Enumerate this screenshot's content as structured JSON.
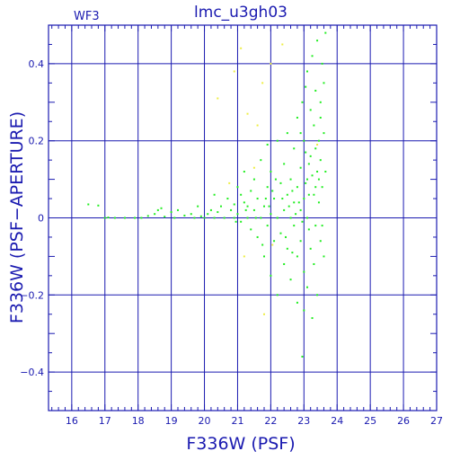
{
  "chart_data": {
    "type": "scatter",
    "title": "lmc_u3gh03",
    "corner_label": "WF3",
    "xlabel": "F336W (PSF)",
    "ylabel": "F336W (PSF−APERTURE)",
    "xlim": [
      15.3,
      27
    ],
    "ylim": [
      -0.5,
      0.5
    ],
    "xticks": [
      16,
      17,
      18,
      19,
      20,
      21,
      22,
      23,
      24,
      25,
      26,
      27
    ],
    "yticks": [
      -0.4,
      -0.2,
      0,
      0.2,
      0.4
    ],
    "ytick_labels": [
      "−0.4",
      "−0.2",
      "0",
      "0.2",
      "0.4"
    ],
    "grid": true,
    "colors": {
      "axis": "#1a1ab0",
      "grid": "#1a1ab0",
      "points_main": "#22ee22",
      "points_alt": "#eeee44"
    },
    "series": [
      {
        "color": "#22ee22",
        "points": [
          [
            16.5,
            0.035
          ],
          [
            16.8,
            0.032
          ],
          [
            17.0,
            0.0
          ],
          [
            17.1,
            0.001
          ],
          [
            17.3,
            0.0
          ],
          [
            17.6,
            0.0
          ],
          [
            17.9,
            0.0
          ],
          [
            18.1,
            0.0
          ],
          [
            18.3,
            0.005
          ],
          [
            18.5,
            0.01
          ],
          [
            18.6,
            0.02
          ],
          [
            18.7,
            0.025
          ],
          [
            18.8,
            0.003
          ],
          [
            19.0,
            0.015
          ],
          [
            19.1,
            0.0
          ],
          [
            19.2,
            0.02
          ],
          [
            19.4,
            0.006
          ],
          [
            19.6,
            0.01
          ],
          [
            19.7,
            0.0
          ],
          [
            19.8,
            0.03
          ],
          [
            19.9,
            0.004
          ],
          [
            20.0,
            0.0
          ],
          [
            20.1,
            0.01
          ],
          [
            20.2,
            0.02
          ],
          [
            20.3,
            0.06
          ],
          [
            20.3,
            0.0
          ],
          [
            20.4,
            0.015
          ],
          [
            20.5,
            0.03
          ],
          [
            20.6,
            0.0
          ],
          [
            20.7,
            0.05
          ],
          [
            20.8,
            0.02
          ],
          [
            20.9,
            0.0
          ],
          [
            20.9,
            0.035
          ],
          [
            21.0,
            0.01
          ],
          [
            21.0,
            0.08
          ],
          [
            21.1,
            0.06
          ],
          [
            21.1,
            -0.01
          ],
          [
            21.2,
            0.12
          ],
          [
            21.2,
            0.04
          ],
          [
            21.3,
            0.0
          ],
          [
            21.3,
            0.03
          ],
          [
            21.4,
            0.07
          ],
          [
            21.4,
            -0.03
          ],
          [
            21.5,
            0.02
          ],
          [
            21.5,
            0.1
          ],
          [
            21.6,
            -0.05
          ],
          [
            21.6,
            0.05
          ],
          [
            21.7,
            0.0
          ],
          [
            21.7,
            0.15
          ],
          [
            21.8,
            0.03
          ],
          [
            21.8,
            -0.1
          ],
          [
            21.9,
            0.08
          ],
          [
            21.9,
            -0.02
          ],
          [
            21.9,
            0.19
          ],
          [
            22.0,
            0.01
          ],
          [
            22.0,
            -0.15
          ],
          [
            22.0,
            0.12
          ],
          [
            22.1,
            0.05
          ],
          [
            22.1,
            -0.06
          ],
          [
            22.2,
            0.0
          ],
          [
            22.2,
            0.2
          ],
          [
            22.2,
            -0.2
          ],
          [
            22.3,
            0.09
          ],
          [
            22.3,
            -0.04
          ],
          [
            22.4,
            0.14
          ],
          [
            22.4,
            0.02
          ],
          [
            22.4,
            -0.12
          ],
          [
            22.5,
            0.06
          ],
          [
            22.5,
            -0.08
          ],
          [
            22.5,
            0.22
          ],
          [
            22.6,
            0.0
          ],
          [
            22.6,
            0.1
          ],
          [
            22.6,
            -0.16
          ],
          [
            22.7,
            0.04
          ],
          [
            22.7,
            -0.02
          ],
          [
            22.7,
            0.18
          ],
          [
            22.8,
            0.08
          ],
          [
            22.8,
            -0.1
          ],
          [
            22.8,
            -0.22
          ],
          [
            22.8,
            0.26
          ],
          [
            22.9,
            0.02
          ],
          [
            22.9,
            0.13
          ],
          [
            22.9,
            -0.06
          ],
          [
            22.95,
            0.3
          ],
          [
            22.95,
            -0.36
          ],
          [
            23.0,
            0.05
          ],
          [
            23.0,
            -0.14
          ],
          [
            23.0,
            0.2
          ],
          [
            23.0,
            -0.24
          ],
          [
            23.05,
            0.34
          ],
          [
            23.1,
            0.0
          ],
          [
            23.1,
            0.1
          ],
          [
            23.1,
            -0.18
          ],
          [
            23.1,
            0.38
          ],
          [
            23.15,
            -0.03
          ],
          [
            23.2,
            0.16
          ],
          [
            23.2,
            -0.08
          ],
          [
            23.2,
            0.28
          ],
          [
            23.25,
            0.42
          ],
          [
            23.25,
            -0.26
          ],
          [
            23.3,
            0.06
          ],
          [
            23.3,
            -0.12
          ],
          [
            23.3,
            0.24
          ],
          [
            23.35,
            0.33
          ],
          [
            23.35,
            -0.02
          ],
          [
            23.4,
            0.12
          ],
          [
            23.4,
            -0.2
          ],
          [
            23.4,
            0.46
          ],
          [
            23.45,
            0.2
          ],
          [
            23.45,
            0.04
          ],
          [
            23.5,
            0.3
          ],
          [
            23.5,
            -0.06
          ],
          [
            23.5,
            0.15
          ],
          [
            23.55,
            0.4
          ],
          [
            23.55,
            0.08
          ],
          [
            23.6,
            0.22
          ],
          [
            23.6,
            -0.1
          ],
          [
            23.65,
            0.48
          ],
          [
            23.65,
            0.12
          ],
          [
            22.2,
            0.0
          ],
          [
            22.35,
            0.05
          ],
          [
            22.55,
            0.03
          ],
          [
            22.65,
            0.07
          ],
          [
            22.75,
            0.01
          ],
          [
            22.85,
            0.04
          ],
          [
            23.05,
            0.09
          ],
          [
            23.15,
            0.06
          ],
          [
            23.25,
            0.11
          ],
          [
            23.35,
            0.08
          ],
          [
            23.45,
            0.1
          ],
          [
            23.15,
            0.14
          ],
          [
            22.05,
            0.07
          ],
          [
            21.85,
            0.05
          ],
          [
            21.75,
            -0.07
          ],
          [
            22.45,
            -0.05
          ],
          [
            22.95,
            -0.01
          ],
          [
            23.05,
            0.17
          ],
          [
            23.55,
            -0.02
          ],
          [
            20.95,
            -0.01
          ],
          [
            21.25,
            0.02
          ],
          [
            21.55,
            0.0
          ],
          [
            21.95,
            0.03
          ],
          [
            22.15,
            0.1
          ],
          [
            22.65,
            -0.09
          ],
          [
            22.9,
            0.22
          ],
          [
            23.35,
            0.18
          ],
          [
            23.5,
            0.26
          ],
          [
            23.6,
            0.35
          ]
        ]
      },
      {
        "color": "#eeee44",
        "points": [
          [
            20.4,
            0.31
          ],
          [
            20.9,
            0.38
          ],
          [
            21.1,
            0.44
          ],
          [
            21.3,
            0.27
          ],
          [
            21.6,
            0.24
          ],
          [
            21.75,
            0.35
          ],
          [
            21.8,
            -0.25
          ],
          [
            22.0,
            0.4
          ],
          [
            22.05,
            -0.07
          ],
          [
            21.5,
            0.13
          ],
          [
            22.35,
            0.45
          ],
          [
            23.4,
            0.19
          ],
          [
            20.75,
            0.09
          ],
          [
            21.2,
            -0.1
          ]
        ]
      }
    ]
  }
}
